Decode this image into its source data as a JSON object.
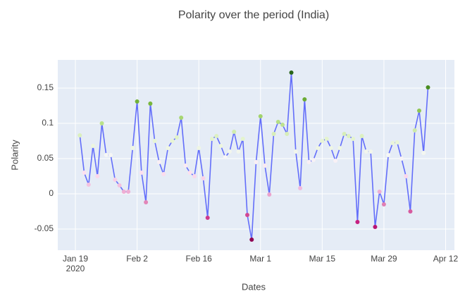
{
  "chart_data": {
    "type": "line",
    "title": "Polarity over the period (India)",
    "x_label": "Dates",
    "y_label": "Polarity",
    "x": [
      "2020-01-20",
      "2020-01-21",
      "2020-01-22",
      "2020-01-23",
      "2020-01-24",
      "2020-01-25",
      "2020-01-26",
      "2020-01-27",
      "2020-01-28",
      "2020-01-29",
      "2020-01-30",
      "2020-01-31",
      "2020-02-01",
      "2020-02-02",
      "2020-02-03",
      "2020-02-04",
      "2020-02-05",
      "2020-02-06",
      "2020-02-07",
      "2020-02-08",
      "2020-02-09",
      "2020-02-10",
      "2020-02-11",
      "2020-02-12",
      "2020-02-13",
      "2020-02-14",
      "2020-02-15",
      "2020-02-16",
      "2020-02-17",
      "2020-02-18",
      "2020-02-19",
      "2020-02-20",
      "2020-02-21",
      "2020-02-22",
      "2020-02-23",
      "2020-02-24",
      "2020-02-25",
      "2020-02-26",
      "2020-02-27",
      "2020-02-28",
      "2020-02-29",
      "2020-03-01",
      "2020-03-02",
      "2020-03-03",
      "2020-03-04",
      "2020-03-05",
      "2020-03-06",
      "2020-03-07",
      "2020-03-08",
      "2020-03-09",
      "2020-03-10",
      "2020-03-11",
      "2020-03-12",
      "2020-03-13",
      "2020-03-14",
      "2020-03-15",
      "2020-03-16",
      "2020-03-17",
      "2020-03-18",
      "2020-03-19",
      "2020-03-20",
      "2020-03-21",
      "2020-03-22",
      "2020-03-23",
      "2020-03-24",
      "2020-03-25",
      "2020-03-26",
      "2020-03-27",
      "2020-03-28",
      "2020-03-29",
      "2020-03-30",
      "2020-03-31",
      "2020-04-01",
      "2020-04-02",
      "2020-04-03",
      "2020-04-04",
      "2020-04-05",
      "2020-04-06",
      "2020-04-07",
      "2020-04-08"
    ],
    "series": [
      {
        "name": "Polarity",
        "color": "#636efa",
        "values": [
          0.083,
          0.03,
          0.013,
          0.068,
          0.025,
          0.1,
          0.055,
          0.055,
          0.02,
          0.012,
          0.003,
          0.003,
          0.065,
          0.131,
          0.03,
          -0.012,
          0.128,
          0.075,
          0.045,
          0.028,
          0.065,
          0.075,
          0.08,
          0.108,
          0.04,
          0.03,
          0.025,
          0.065,
          0.022,
          -0.034,
          0.078,
          0.082,
          0.068,
          0.052,
          0.06,
          0.088,
          0.06,
          0.078,
          -0.03,
          -0.065,
          0.045,
          0.11,
          0.04,
          -0.001,
          0.085,
          0.102,
          0.098,
          0.085,
          0.172,
          0.06,
          0.008,
          0.134,
          0.045,
          0.048,
          0.065,
          0.075,
          0.078,
          0.065,
          0.047,
          0.065,
          0.085,
          0.082,
          0.078,
          -0.04,
          0.082,
          0.06,
          0.06,
          -0.047,
          0.003,
          -0.015,
          0.055,
          0.072,
          0.073,
          0.05,
          0.025,
          -0.025,
          0.09,
          0.118,
          0.058,
          0.151
        ]
      }
    ],
    "marker_colorscale": [
      "#8e0152",
      "#c51b7d",
      "#de77ae",
      "#f1b6da",
      "#fde0ef",
      "#f7f7f7",
      "#e6f5d0",
      "#b8e186",
      "#7fbc41",
      "#4d9221",
      "#276419"
    ],
    "background": "#e5ecf6",
    "xlim": [
      "2020-01-15",
      "2020-04-14"
    ],
    "xticks": [
      {
        "value": "2020-01-19",
        "label": "Jan 19"
      },
      {
        "value": "2020-02-02",
        "label": "Feb 2"
      },
      {
        "value": "2020-02-16",
        "label": "Feb 16"
      },
      {
        "value": "2020-03-01",
        "label": "Mar 1"
      },
      {
        "value": "2020-03-15",
        "label": "Mar 15"
      },
      {
        "value": "2020-03-29",
        "label": "Mar 29"
      },
      {
        "value": "2020-04-12",
        "label": "Apr 12"
      }
    ],
    "xtick_year": "2020",
    "ylim": [
      -0.08,
      0.19
    ],
    "yticks": [
      -0.05,
      0,
      0.05,
      0.1,
      0.15
    ],
    "grid": true
  }
}
